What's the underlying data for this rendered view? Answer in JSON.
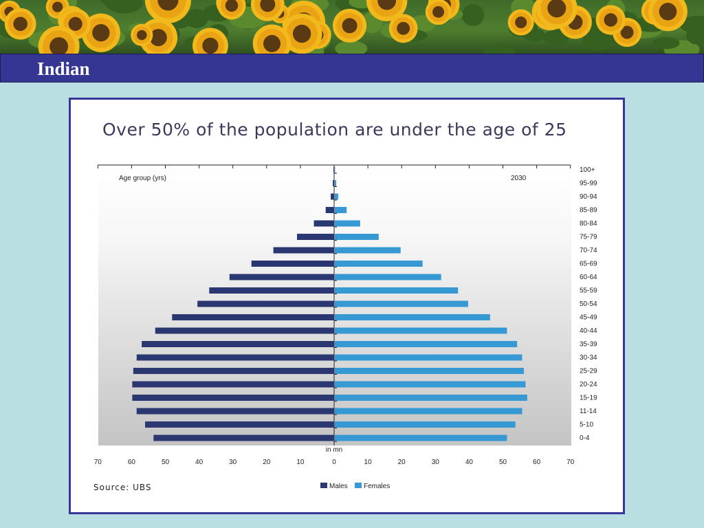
{
  "slide": {
    "title": "Indian"
  },
  "colors": {
    "males": "#2a3770",
    "females": "#3799d4",
    "frame": "#35359a",
    "titlebar": "#353594",
    "background": "#b9dfe3"
  },
  "banner": {
    "icon": "sunflower-field-photo"
  },
  "chart_data": {
    "type": "bar",
    "orientation": "horizontal-population-pyramid",
    "title": "Over 50% of the population are under the age of 25",
    "year_label": "2030",
    "ylabel": "Age group (yrs)",
    "xlabel": "in mn",
    "source": "Source: UBS",
    "xlim": [
      0,
      70
    ],
    "x_ticks": [
      70,
      60,
      50,
      40,
      30,
      20,
      10,
      0,
      10,
      20,
      30,
      40,
      50,
      60,
      70
    ],
    "categories": [
      "100+",
      "95-99",
      "90-94",
      "85-89",
      "80-84",
      "75-79",
      "70-74",
      "65-69",
      "60-64",
      "55-59",
      "50-54",
      "45-49",
      "40-44",
      "35-39",
      "30-34",
      "25-29",
      "20-24",
      "15-19",
      "11-14",
      "5-10",
      "0-4"
    ],
    "series": [
      {
        "name": "Males",
        "values": [
          0.2,
          0.4,
          1.0,
          2.5,
          6.0,
          11.0,
          18.0,
          24.5,
          31.0,
          37.0,
          40.5,
          48.0,
          53.0,
          57.0,
          58.5,
          59.5,
          59.8,
          59.8,
          58.5,
          56.0,
          53.5
        ]
      },
      {
        "name": "Females",
        "values": [
          0.1,
          0.4,
          1.0,
          3.5,
          7.5,
          13.0,
          19.5,
          26.0,
          31.5,
          36.5,
          39.5,
          46.0,
          51.0,
          54.0,
          55.5,
          56.0,
          56.5,
          57.0,
          55.5,
          53.5,
          51.0
        ]
      }
    ],
    "legend": {
      "position": "bottom-center",
      "entries": [
        "Males",
        "Females"
      ]
    },
    "grid": false
  }
}
